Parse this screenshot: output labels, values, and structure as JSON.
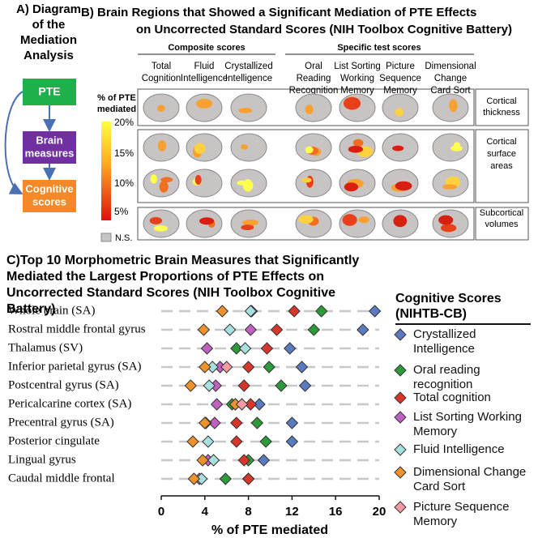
{
  "panel_a": {
    "title": [
      "A) Diagram",
      "of the",
      "Mediation",
      "Analysis"
    ],
    "boxes": [
      "PTE",
      [
        "Brain",
        "measures"
      ],
      [
        "Cognitive",
        "scores"
      ]
    ]
  },
  "panel_b": {
    "title": [
      "B) Brain Regions that Showed a Significant Mediation of PTE Effects",
      "on Uncorrected Standard Scores (NIH Toolbox Cognitive Battery)"
    ],
    "groups": [
      "Composite scores",
      "Specific test scores"
    ],
    "columns": [
      [
        "Total",
        "Cognition"
      ],
      [
        "Fluid",
        "Intelligence"
      ],
      [
        "Crystallized",
        "Intelligence"
      ],
      [
        "Oral",
        "Reading",
        "Recognition"
      ],
      [
        "List Sorting",
        "Working",
        "Memory"
      ],
      [
        "Picture",
        "Sequence",
        "Memory"
      ],
      [
        "Dimensional",
        "Change",
        "Card Sort"
      ]
    ],
    "colorbar_title": [
      "% of PTE",
      "mediated"
    ],
    "colorbar_labels": [
      "20%",
      "15%",
      "10%",
      "5%"
    ],
    "ns_label": "N.S.",
    "rows": [
      [
        "Cortical",
        "thickness"
      ],
      [
        "Cortical",
        "surface",
        "areas"
      ],
      [
        "Subcortical",
        "volumes"
      ]
    ]
  },
  "chart_data": {
    "type": "dot",
    "orientation": "horizontal",
    "title": "C)Top 10 Morphometric Brain Measures that Significantly Mediated the Largest Proportions of PTE Effects on Uncorrected Standard Scores (NIH Toolbox Cognitive Battery)",
    "x_label": "% of PTE mediated",
    "legend_title": [
      "Cognitive Scores",
      "(NIHTB-CB)"
    ],
    "categories": [
      "Whole brain (SA)",
      "Rostral middle frontal gyrus",
      "Thalamus (SV)",
      "Inferior parietal gyrus (SA)",
      "Postcentral gyrus (SA)",
      "Pericalcarine cortex (SA)",
      "Precentral gyrus (SA)",
      "Posterior cingulate",
      "Lingual gyrus",
      "Caudal middle frontal"
    ],
    "xlim": [
      0,
      20
    ],
    "xticks": [
      0,
      4,
      8,
      12,
      16,
      20
    ],
    "series": [
      {
        "name": "Crystallized Intelligence",
        "color": "#5a7bc0",
        "values": [
          19.6,
          18.5,
          11.8,
          12.9,
          13.2,
          9.0,
          12.0,
          12.0,
          9.4,
          8.0
        ]
      },
      {
        "name": "Oral reading recognition",
        "color": "#2e9b3a",
        "values": [
          14.7,
          14.0,
          6.9,
          9.9,
          11.0,
          6.5,
          8.8,
          9.6,
          8.0,
          5.9
        ]
      },
      {
        "name": "Total cognition",
        "color": "#d9362b",
        "values": [
          12.2,
          10.6,
          9.7,
          8.0,
          7.6,
          8.2,
          6.9,
          6.9,
          7.6,
          8.0
        ]
      },
      {
        "name": "List Sorting Working Memory",
        "color": "#c060c0",
        "values": [
          8.3,
          8.2,
          4.2,
          5.4,
          5.0,
          5.1,
          4.9,
          null,
          4.3,
          3.5
        ]
      },
      {
        "name": "Fluid Intelligence",
        "color": "#a8e0e0",
        "values": [
          8.2,
          6.3,
          7.7,
          4.7,
          4.4,
          6.8,
          4.1,
          4.3,
          4.8,
          3.7
        ]
      },
      {
        "name": "Dimensional Change Card Sort",
        "color": "#f0922b",
        "values": [
          5.6,
          3.9,
          null,
          4.0,
          2.7,
          6.8,
          4.0,
          2.9,
          3.8,
          3.0
        ]
      },
      {
        "name": "Picture Sequence Memory",
        "color": "#f49aa0",
        "values": [
          null,
          null,
          null,
          6.0,
          null,
          7.4,
          null,
          null,
          null,
          null
        ]
      }
    ]
  }
}
